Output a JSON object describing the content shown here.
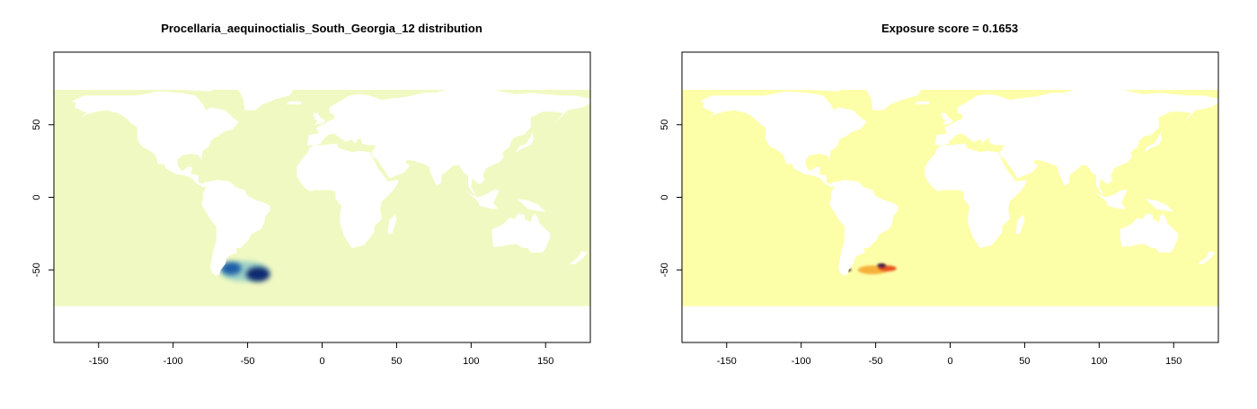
{
  "panels": [
    {
      "title": "Procellaria_aequinoctialis_South_Georgia_12 distribution",
      "ocean_color": "#f1f9c2",
      "xlim": [
        -180,
        180
      ],
      "ylim": [
        -100,
        100
      ],
      "x_ticks": [
        -150,
        -100,
        -50,
        0,
        50,
        100,
        150
      ],
      "y_ticks": [
        -50,
        0,
        50
      ],
      "ocean_lat_range": [
        -75,
        74
      ],
      "hotspots": [
        {
          "lon": -61,
          "lat": -49,
          "rx": 7,
          "ry": 4.5,
          "color": "#1d5fa8"
        },
        {
          "lon": -43,
          "lat": -53,
          "rx": 8,
          "ry": 5,
          "color": "#0b2a6f"
        },
        {
          "lon": -52,
          "lat": -51,
          "rx": 16,
          "ry": 7,
          "color": "#9fd3c6"
        }
      ]
    },
    {
      "title": "Exposure score = 0.1653",
      "ocean_color": "#fdfea8",
      "xlim": [
        -180,
        180
      ],
      "ylim": [
        -100,
        100
      ],
      "x_ticks": [
        -150,
        -100,
        -50,
        0,
        50,
        100,
        150
      ],
      "y_ticks": [
        -50,
        0,
        50
      ],
      "ocean_lat_range": [
        -75,
        74
      ],
      "hotspots": [
        {
          "lon": -52,
          "lat": -50,
          "rx": 10,
          "ry": 3,
          "color": "#f5b13a"
        },
        {
          "lon": -42,
          "lat": -49,
          "rx": 6,
          "ry": 2,
          "color": "#e8531f"
        },
        {
          "lon": -46,
          "lat": -47,
          "rx": 3,
          "ry": 1.5,
          "color": "#4a1240"
        },
        {
          "lon": -68,
          "lat": -50,
          "rx": 1.5,
          "ry": 1,
          "color": "#2a0a1f"
        }
      ]
    }
  ]
}
